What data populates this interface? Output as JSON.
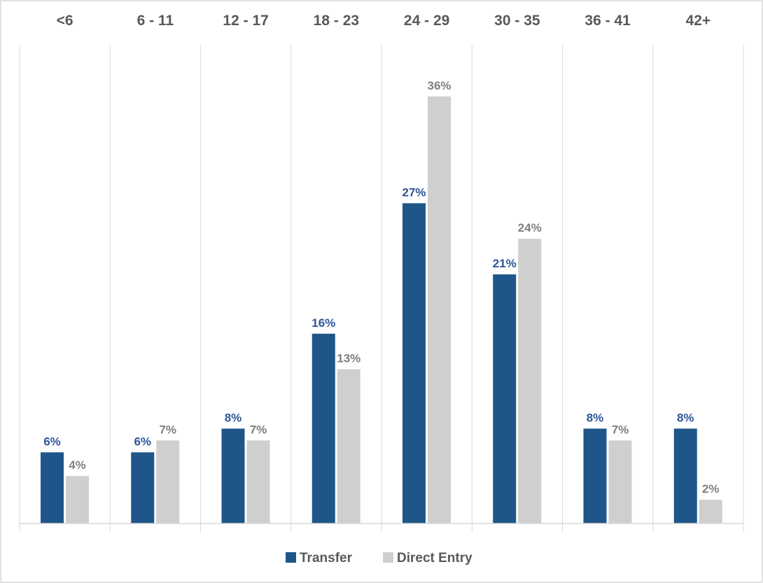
{
  "chart_data": {
    "type": "bar",
    "categories": [
      "<6",
      "6 - 11",
      "12 - 17",
      "18 - 23",
      "24 - 29",
      "30 - 35",
      "36 - 41",
      "42+"
    ],
    "series": [
      {
        "name": "Transfer",
        "color": "#1f5689",
        "values": [
          6,
          6,
          8,
          16,
          27,
          21,
          8,
          8
        ],
        "labels": [
          "6%",
          "6%",
          "8%",
          "16%",
          "27%",
          "21%",
          "8%",
          "8%"
        ],
        "label_color": "#2e5597"
      },
      {
        "name": "Direct Entry",
        "color": "#d0cfd0",
        "values": [
          4,
          7,
          7,
          13,
          36,
          24,
          7,
          2
        ],
        "labels": [
          "4%",
          "7%",
          "7%",
          "13%",
          "36%",
          "24%",
          "7%",
          "2%"
        ],
        "label_color": "#7f7f7f"
      }
    ],
    "category_axis_position": "top",
    "legend": {
      "position": "bottom-center"
    },
    "grid": false,
    "ylim": [
      0,
      36
    ]
  }
}
